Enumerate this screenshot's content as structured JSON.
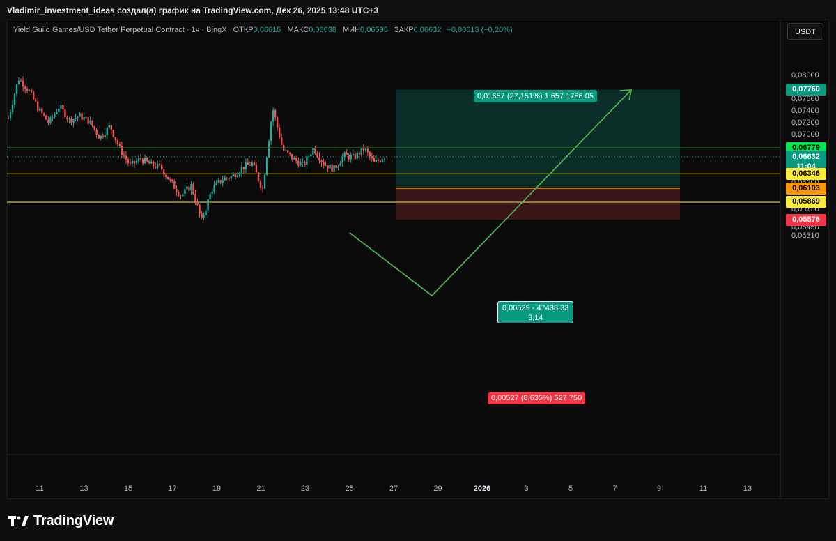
{
  "header": {
    "title": "Vladimir_investment_ideas создал(а) график на TradingView.com, Дек 26, 2025 13:48 UTC+3"
  },
  "symbol_info": {
    "name": "Yield Guild Games/USD Tether Perpetual Contract · 1ч · BingX",
    "open_label": "ОТКР",
    "open_value": "0,06615",
    "high_label": "МАКС",
    "high_value": "0,06638",
    "low_label": "МИН",
    "low_value": "0,06595",
    "close_label": "ЗАКР",
    "close_value": "0,06632",
    "change": "+0,00013 (+0,20%)"
  },
  "currency_button": "USDT",
  "price_axis": {
    "ticks": [
      "0,08000",
      "0,07600",
      "0,07400",
      "0,07200",
      "0,07000",
      "0,06400",
      "0,06200",
      "0,05750",
      "0,05450",
      "0,05310"
    ],
    "partial_ticks": [
      "0,07800",
      "0,06600",
      "0,06050",
      "0,05900",
      "0,05600"
    ]
  },
  "price_tags": [
    {
      "value": "0,07760",
      "color": "#089981"
    },
    {
      "value": "0,06779",
      "color": "#00e64d"
    },
    {
      "value": "0,06632",
      "sub": "11:04",
      "color": "#089981"
    },
    {
      "value": "0,06346",
      "color": "#ffeb3b"
    },
    {
      "value": "0,06103",
      "color": "#ff9800"
    },
    {
      "value": "0,05869",
      "color": "#ffeb3b"
    },
    {
      "value": "0,05576",
      "color": "#f23645"
    }
  ],
  "time_axis": [
    "11",
    "13",
    "15",
    "17",
    "19",
    "21",
    "23",
    "25",
    "27",
    "29",
    "2026",
    "3",
    "5",
    "7",
    "9",
    "11",
    "13"
  ],
  "position": {
    "profit_label": "0,01657 (27,151%) 1 657 1786.05",
    "mid_label_line1": "0,00529 - 47438.33",
    "mid_label_line2": "3,14",
    "loss_label": "0,00527 (8,635%) 527 750"
  },
  "brand": {
    "name": "TradingView"
  },
  "colors": {
    "up": "#26a69a",
    "down": "#ef5350",
    "green_line": "#4caf50",
    "yellow_line": "#ffeb3b",
    "orange_line": "#ff9800"
  },
  "chart_data": {
    "type": "candlestick",
    "timeframe": "1h",
    "last_price": 0.06632,
    "levels": [
      {
        "name": "resistance",
        "price": 0.06779
      },
      {
        "name": "support",
        "price": 0.06346
      },
      {
        "name": "support",
        "price": 0.05869
      },
      {
        "name": "entry",
        "price": 0.06103
      },
      {
        "name": "take_profit",
        "price": 0.0776
      },
      {
        "name": "stop_loss",
        "price": 0.05576
      }
    ],
    "series_path": [
      0.0728,
      0.0795,
      0.0775,
      0.0742,
      0.072,
      0.0748,
      0.0725,
      0.0732,
      0.0722,
      0.0695,
      0.0715,
      0.0675,
      0.0648,
      0.066,
      0.065,
      0.0645,
      0.062,
      0.0598,
      0.0615,
      0.0555,
      0.0608,
      0.0625,
      0.063,
      0.0645,
      0.0652,
      0.0608,
      0.0745,
      0.0675,
      0.066,
      0.0648,
      0.0678,
      0.0652,
      0.0642,
      0.0665,
      0.0662,
      0.0677,
      0.0652,
      0.0664
    ]
  }
}
